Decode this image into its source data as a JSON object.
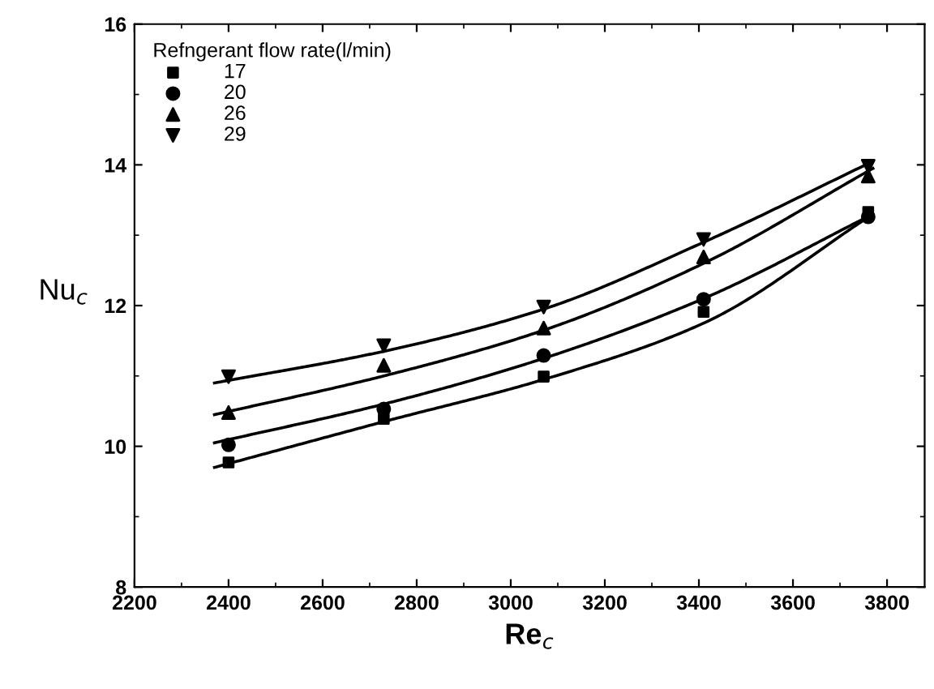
{
  "chart_data": {
    "type": "scatter",
    "xlabel": "Re$_{c}$",
    "ylabel": "Nu$_{c}$",
    "legend_title": "Refngerant flow rate(l/min)",
    "legend": "top left",
    "grid": false,
    "xlim": [
      2200,
      3880
    ],
    "xticks": [
      2200,
      2400,
      2600,
      2800,
      3000,
      3200,
      3400,
      3600,
      3800
    ],
    "ylim": [
      8,
      16
    ],
    "yticks": [
      8,
      10,
      12,
      14,
      16
    ],
    "series": [
      {
        "name": "17",
        "color": "#000000",
        "marker": "square",
        "x": [
          2400,
          2730,
          3070,
          3410,
          3760
        ],
        "values": [
          9.77,
          10.39,
          10.99,
          11.91,
          13.33
        ]
      },
      {
        "name": "20",
        "color": "#000000",
        "marker": "circle",
        "x": [
          2400,
          2730,
          3070,
          3410,
          3760
        ],
        "values": [
          10.02,
          10.53,
          11.29,
          12.09,
          13.26
        ]
      },
      {
        "name": "26",
        "color": "#000000",
        "marker": "triangle",
        "x": [
          2400,
          2730,
          3070,
          3410,
          3760
        ],
        "values": [
          10.48,
          11.15,
          11.68,
          12.69,
          13.84
        ]
      },
      {
        "name": "29",
        "color": "#000000",
        "marker": "triangle_down",
        "x": [
          2400,
          2730,
          3070,
          3410,
          3760
        ],
        "values": [
          10.99,
          11.43,
          11.98,
          12.94,
          13.98
        ]
      },
      {
        "type": "line",
        "color": "#000000",
        "x": [
          2370,
          2730,
          3070,
          3410,
          3770
        ],
        "values": [
          9.7,
          10.35,
          10.95,
          11.75,
          13.3
        ]
      },
      {
        "type": "line",
        "color": "#000000",
        "x": [
          2370,
          2730,
          3070,
          3410,
          3770
        ],
        "values": [
          10.05,
          10.6,
          11.25,
          12.1,
          13.3
        ]
      },
      {
        "type": "line",
        "color": "#000000",
        "x": [
          2370,
          2730,
          3070,
          3410,
          3770
        ],
        "values": [
          10.45,
          11.0,
          11.65,
          12.6,
          13.95
        ]
      },
      {
        "type": "line",
        "color": "#000000",
        "x": [
          2370,
          2730,
          3070,
          3410,
          3770
        ],
        "values": [
          10.9,
          11.35,
          11.95,
          12.9,
          14.05
        ]
      }
    ]
  }
}
